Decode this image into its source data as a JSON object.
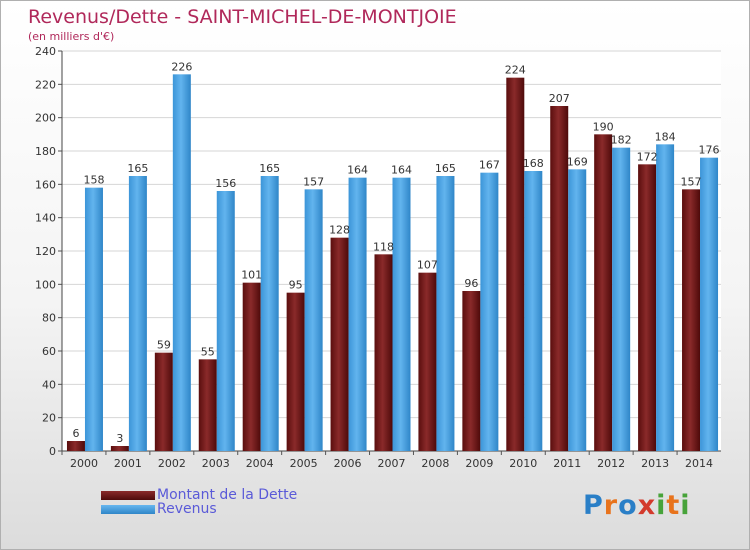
{
  "header": {
    "title": "Revenus/Dette - SAINT-MICHEL-DE-MONTJOIE",
    "subtitle": "(en milliers d'€)"
  },
  "legend": [
    {
      "label": "Montant de la Dette",
      "color": "#7b1c1c"
    },
    {
      "label": "Revenus",
      "color": "#4aa3e6"
    }
  ],
  "logo": {
    "text": "Proxiti",
    "colors": [
      "#2a7fc7",
      "#e8731c",
      "#47a33a",
      "#d33a2c"
    ]
  },
  "chart_data": {
    "type": "bar",
    "title": "Revenus/Dette - SAINT-MICHEL-DE-MONTJOIE",
    "subtitle": "(en milliers d'€)",
    "xlabel": "",
    "ylabel": "",
    "ylim": [
      0,
      240
    ],
    "yticks": [
      0,
      20,
      40,
      60,
      80,
      100,
      120,
      140,
      160,
      180,
      200,
      220,
      240
    ],
    "grid": true,
    "legend_position": "bottom-left",
    "categories": [
      "2000",
      "2001",
      "2002",
      "2003",
      "2004",
      "2005",
      "2006",
      "2007",
      "2008",
      "2009",
      "2010",
      "2011",
      "2012",
      "2013",
      "2014"
    ],
    "series": [
      {
        "name": "Montant de la Dette",
        "color": "#7b1c1c",
        "values": [
          6,
          3,
          59,
          55,
          101,
          95,
          128,
          118,
          107,
          96,
          224,
          207,
          190,
          172,
          157
        ]
      },
      {
        "name": "Revenus",
        "color": "#4aa3e6",
        "values": [
          158,
          165,
          226,
          156,
          165,
          157,
          164,
          164,
          165,
          167,
          168,
          169,
          182,
          184,
          176
        ]
      }
    ]
  }
}
